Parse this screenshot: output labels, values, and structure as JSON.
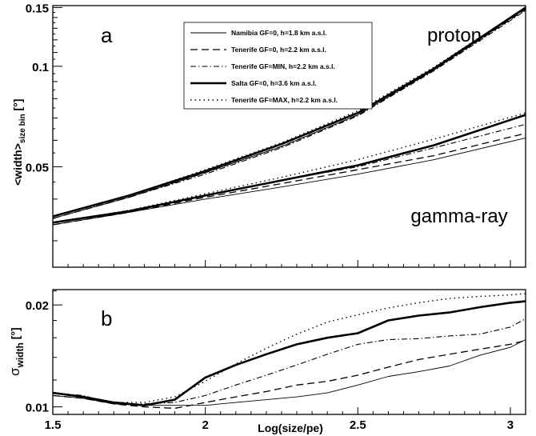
{
  "chart_data": [
    {
      "panel_label": "a",
      "type": "line",
      "ylabel_main": "<width>",
      "ylabel_sub": "size bin",
      "ylabel_unit": " [°]",
      "xlim": [
        1.5,
        3.05
      ],
      "ylim": [
        0.025,
        0.152
      ],
      "yscale": "log",
      "x_ticks": [
        1.5,
        2,
        2.5,
        3
      ],
      "y_ticks": [
        0.05,
        0.1,
        0.15
      ],
      "y_tick_labels": [
        "0.05",
        "0.1",
        "0.15"
      ],
      "annotations": [
        "proton",
        "gamma-ray"
      ],
      "legend": {
        "position": "top-center",
        "entries": [
          {
            "label": "Namibia GF=0, h=1.8 km a.s.l.",
            "style": "thin"
          },
          {
            "label": "Tenerife GF=0, h=2.2 km a.s.l.",
            "style": "dashed"
          },
          {
            "label": "Tenerife GF=MIN, h=2.2 km a.s.l.",
            "style": "dashdot"
          },
          {
            "label": "Salta GF=0, h=3.6 km a.s.l.",
            "style": "thick"
          },
          {
            "label": "Tenerife GF=MAX, h=2.2 km a.s.l.",
            "style": "dotted"
          }
        ]
      },
      "x": [
        1.5,
        1.75,
        2.0,
        2.25,
        2.5,
        2.75,
        3.05
      ],
      "series": [
        {
          "name": "Namibia GF=0, h=1.8 km a.s.l.",
          "group": "proton",
          "style": "thin",
          "values": [
            0.035,
            0.0405,
            0.048,
            0.0575,
            0.0715,
            0.0975,
            0.149
          ]
        },
        {
          "name": "Tenerife GF=0, h=2.2 km a.s.l.",
          "group": "proton",
          "style": "dashed",
          "values": [
            0.035,
            0.0405,
            0.048,
            0.0575,
            0.0715,
            0.0975,
            0.148
          ]
        },
        {
          "name": "Tenerife GF=MIN, h=2.2 km a.s.l.",
          "group": "proton",
          "style": "dashdot",
          "values": [
            0.035,
            0.0405,
            0.0475,
            0.057,
            0.071,
            0.097,
            0.147
          ]
        },
        {
          "name": "Salta GF=0, h=3.6 km a.s.l.",
          "group": "proton",
          "style": "thick",
          "values": [
            0.0355,
            0.041,
            0.0485,
            0.0585,
            0.0725,
            0.0985,
            0.15
          ]
        },
        {
          "name": "Tenerife GF=MAX, h=2.2 km a.s.l.",
          "group": "proton",
          "style": "dotted",
          "values": [
            0.0355,
            0.041,
            0.049,
            0.059,
            0.0735,
            0.0995,
            0.15
          ]
        },
        {
          "name": "Namibia GF=0, h=1.8 km a.s.l.",
          "group": "gamma-ray",
          "style": "thin",
          "values": [
            0.0335,
            0.0365,
            0.04,
            0.0435,
            0.0475,
            0.0525,
            0.061
          ]
        },
        {
          "name": "Tenerife GF=0, h=2.2 km a.s.l.",
          "group": "gamma-ray",
          "style": "dashed",
          "values": [
            0.0335,
            0.0365,
            0.0405,
            0.0445,
            0.049,
            0.054,
            0.063
          ]
        },
        {
          "name": "Tenerife GF=MIN, h=2.2 km a.s.l.",
          "group": "gamma-ray",
          "style": "dashdot",
          "values": [
            0.034,
            0.037,
            0.041,
            0.0455,
            0.05,
            0.057,
            0.067
          ]
        },
        {
          "name": "Salta GF=0, h=3.6 km a.s.l.",
          "group": "gamma-ray",
          "style": "thick",
          "values": [
            0.034,
            0.0368,
            0.041,
            0.0455,
            0.0505,
            0.058,
            0.0715
          ]
        },
        {
          "name": "Tenerife GF=MAX, h=2.2 km a.s.l.",
          "group": "gamma-ray",
          "style": "dotted",
          "values": [
            0.034,
            0.037,
            0.0415,
            0.0465,
            0.0525,
            0.0605,
            0.0725
          ]
        }
      ]
    },
    {
      "panel_label": "b",
      "type": "line",
      "ylabel_main": "σ",
      "ylabel_sub": "width",
      "ylabel_unit": " [°]",
      "xlabel": "Log(size/pe)",
      "xlim": [
        1.5,
        3.05
      ],
      "ylim": [
        0.0095,
        0.0222
      ],
      "yscale": "log",
      "x_ticks": [
        1.5,
        2,
        2.5,
        3
      ],
      "x_tick_labels": [
        "1.5",
        "2",
        "2.5",
        "3"
      ],
      "y_ticks": [
        0.01,
        0.02
      ],
      "y_tick_labels": [
        "0.01",
        "0.02"
      ],
      "x": [
        1.5,
        1.6,
        1.7,
        1.8,
        1.9,
        2.0,
        2.1,
        2.2,
        2.3,
        2.4,
        2.5,
        2.6,
        2.7,
        2.8,
        2.9,
        3.0,
        3.05
      ],
      "series": [
        {
          "name": "Namibia GF=0, h=1.8 km a.s.l.",
          "style": "thin",
          "values": [
            0.0108,
            0.0106,
            0.0102,
            0.0101,
            0.0101,
            0.0101,
            0.0103,
            0.0105,
            0.0107,
            0.011,
            0.0116,
            0.0123,
            0.0127,
            0.0132,
            0.0142,
            0.015,
            0.0158
          ]
        },
        {
          "name": "Tenerife GF=0, h=2.2 km a.s.l.",
          "style": "dashed",
          "values": [
            0.0108,
            0.0106,
            0.0102,
            0.01,
            0.0099,
            0.0103,
            0.0107,
            0.0111,
            0.0116,
            0.0119,
            0.0124,
            0.0131,
            0.0138,
            0.0143,
            0.0148,
            0.0153,
            0.0157
          ]
        },
        {
          "name": "Tenerife GF=MIN, h=2.2 km a.s.l.",
          "style": "dashdot",
          "values": [
            0.011,
            0.0108,
            0.0102,
            0.0102,
            0.0103,
            0.0108,
            0.0116,
            0.0124,
            0.0133,
            0.0143,
            0.0153,
            0.0158,
            0.0159,
            0.0162,
            0.0164,
            0.0172,
            0.0182
          ]
        },
        {
          "name": "Salta GF=0, h=3.6 km a.s.l.",
          "style": "thick",
          "values": [
            0.011,
            0.0107,
            0.0103,
            0.0101,
            0.0105,
            0.0122,
            0.0133,
            0.0143,
            0.0153,
            0.016,
            0.0165,
            0.018,
            0.0186,
            0.019,
            0.0197,
            0.0203,
            0.0205
          ]
        },
        {
          "name": "Tenerife GF=MAX, h=2.2 km a.s.l.",
          "style": "dotted",
          "values": [
            0.011,
            0.0107,
            0.0103,
            0.0103,
            0.0107,
            0.0119,
            0.0134,
            0.0149,
            0.0164,
            0.0178,
            0.0187,
            0.0196,
            0.0203,
            0.0209,
            0.0212,
            0.0214,
            0.0216
          ]
        }
      ]
    }
  ]
}
